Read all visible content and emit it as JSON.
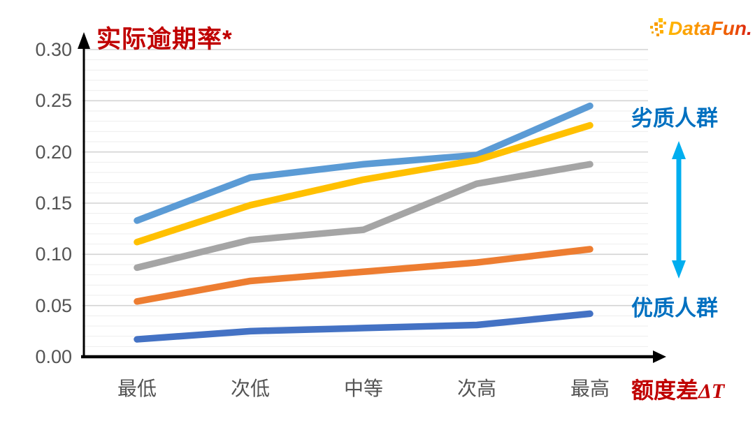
{
  "logo": {
    "text": "DataFun.",
    "gradient_start": "#FFB900",
    "gradient_end": "#CE1212",
    "pixel_colors": [
      "#FFC000",
      "#FFAE00",
      "#F99B00",
      "#F4A800"
    ]
  },
  "annotations": {
    "top_label": "劣质人群",
    "bottom_label": "优质人群",
    "label_color": "#0070C0",
    "arrow_color": "#00AEEF"
  },
  "colors": {
    "title_red": "#C00000",
    "axis_text_gray": "#545454",
    "axis_black": "#000000",
    "grid_minor": "#ededed",
    "grid_major": "#d3d3d3"
  },
  "chart_data": {
    "type": "line",
    "title": "实际逾期率*",
    "xlabel_prefix": "额度差",
    "xlabel_suffix": "ΔT",
    "ylabel": "",
    "categories": [
      "最低",
      "次低",
      "中等",
      "次高",
      "最高"
    ],
    "series": [
      {
        "name": "series-1-light-blue",
        "color": "#5B9BD5",
        "values": [
          0.133,
          0.175,
          0.188,
          0.197,
          0.245
        ]
      },
      {
        "name": "series-2-yellow",
        "color": "#FFC000",
        "values": [
          0.112,
          0.148,
          0.173,
          0.192,
          0.226
        ]
      },
      {
        "name": "series-3-gray",
        "color": "#A5A5A5",
        "values": [
          0.087,
          0.114,
          0.124,
          0.169,
          0.188
        ]
      },
      {
        "name": "series-4-orange",
        "color": "#ED7D31",
        "values": [
          0.054,
          0.074,
          0.083,
          0.092,
          0.105
        ]
      },
      {
        "name": "series-5-dark-blue",
        "color": "#4472C4",
        "values": [
          0.017,
          0.025,
          0.028,
          0.031,
          0.042
        ]
      }
    ],
    "ylim": [
      0,
      0.3
    ],
    "yticks": {
      "values": [
        0,
        0.05,
        0.1,
        0.15,
        0.2,
        0.25,
        0.3
      ],
      "labels": [
        "0.00",
        "0.05",
        "0.10",
        "0.15",
        "0.20",
        "0.25",
        "0.30"
      ]
    },
    "minor_grid_step": 0.01,
    "major_grid_step": 0.05,
    "grid": true,
    "legend": "none"
  }
}
